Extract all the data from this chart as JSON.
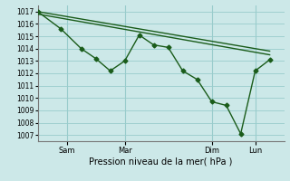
{
  "xlabel": "Pression niveau de la mer( hPa )",
  "bg_color": "#cce8e8",
  "grid_color": "#99cccc",
  "line_color": "#1a5c1a",
  "ylim": [
    1006.5,
    1017.5
  ],
  "yticks": [
    1007,
    1008,
    1009,
    1010,
    1011,
    1012,
    1013,
    1014,
    1015,
    1016,
    1017
  ],
  "day_labels": [
    "Sam",
    "Mar",
    "Dim",
    "Lun"
  ],
  "day_positions": [
    1,
    3,
    6,
    7.5
  ],
  "vline_positions": [
    1,
    3,
    6,
    7.5
  ],
  "xlim": [
    0,
    8.5
  ],
  "series_jagged": {
    "x": [
      0.0,
      0.8,
      1.5,
      2.0,
      2.5,
      3.0,
      3.5,
      4.0,
      4.5,
      5.0,
      5.5,
      6.0,
      6.5,
      7.0,
      7.5,
      8.0
    ],
    "y": [
      1017.0,
      1015.6,
      1014.0,
      1013.2,
      1012.2,
      1013.0,
      1015.1,
      1014.3,
      1014.1,
      1012.2,
      1011.5,
      1009.7,
      1009.4,
      1007.1,
      1012.2,
      1013.1
    ]
  },
  "series_straight1": {
    "x": [
      0.0,
      8.0
    ],
    "y": [
      1017.0,
      1013.8
    ]
  },
  "series_straight2": {
    "x": [
      0.0,
      8.0
    ],
    "y": [
      1016.8,
      1013.5
    ]
  }
}
